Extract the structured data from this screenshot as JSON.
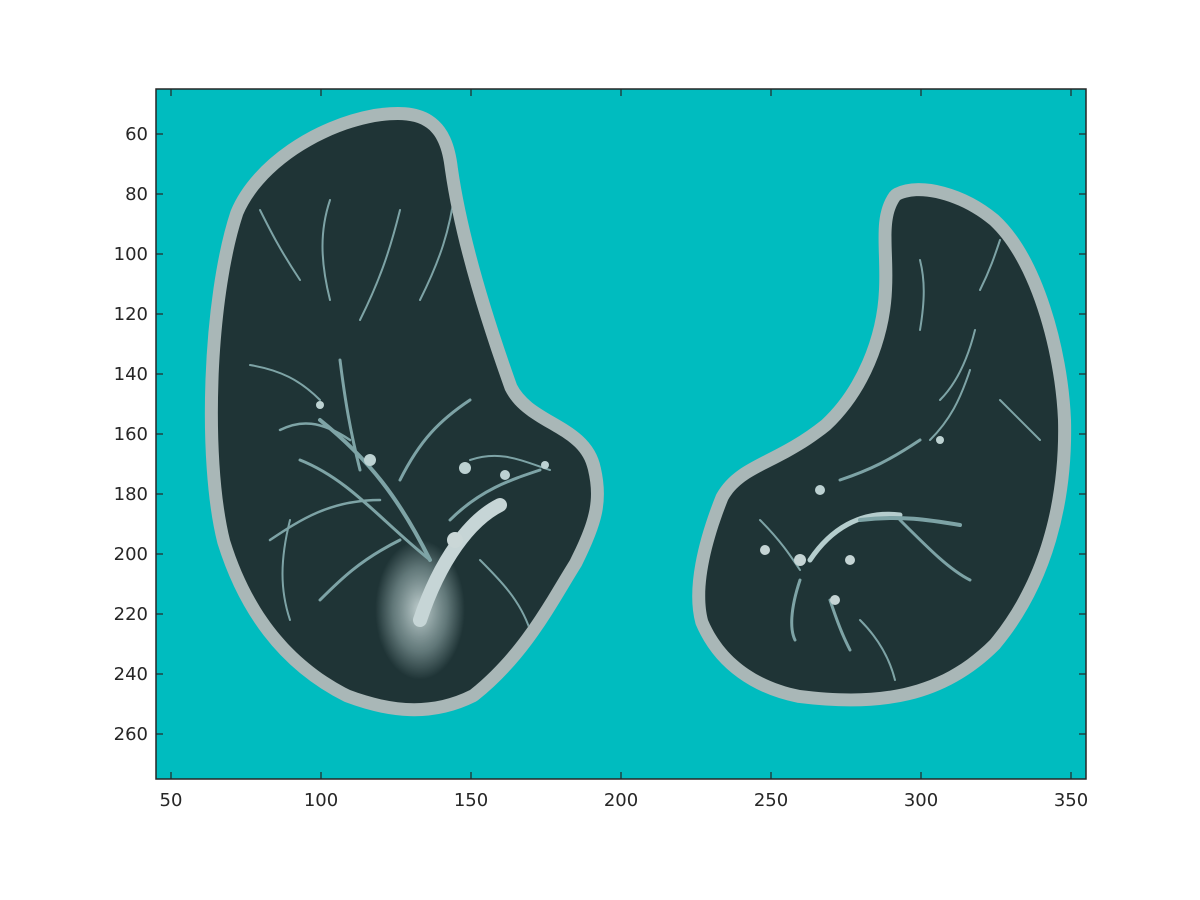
{
  "figure": {
    "background": "#ffffff",
    "image_background": "#00bcbf",
    "lung_tissue_color": "#1f3436",
    "rim_color": "#a9b7b7",
    "vessel_color": "#bfe4e6"
  },
  "axes": {
    "x_range": [
      45,
      355
    ],
    "y_range": [
      275,
      45
    ],
    "y_direction": "down",
    "x_ticks": [
      {
        "value": 50,
        "label": "50"
      },
      {
        "value": 100,
        "label": "100"
      },
      {
        "value": 150,
        "label": "150"
      },
      {
        "value": 200,
        "label": "200"
      },
      {
        "value": 250,
        "label": "250"
      },
      {
        "value": 300,
        "label": "300"
      },
      {
        "value": 350,
        "label": "350"
      }
    ],
    "y_ticks": [
      {
        "value": 60,
        "label": "60"
      },
      {
        "value": 80,
        "label": "80"
      },
      {
        "value": 100,
        "label": "100"
      },
      {
        "value": 120,
        "label": "120"
      },
      {
        "value": 140,
        "label": "140"
      },
      {
        "value": 160,
        "label": "160"
      },
      {
        "value": 180,
        "label": "180"
      },
      {
        "value": 200,
        "label": "200"
      },
      {
        "value": 220,
        "label": "220"
      },
      {
        "value": 240,
        "label": "240"
      },
      {
        "value": 260,
        "label": "260"
      }
    ]
  }
}
